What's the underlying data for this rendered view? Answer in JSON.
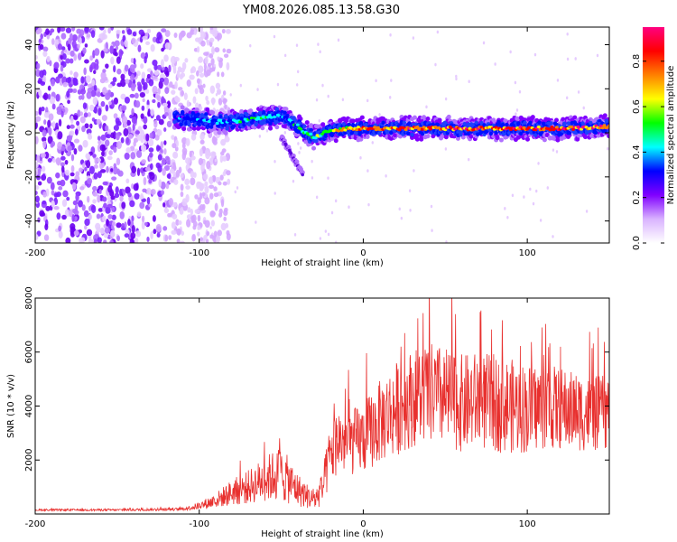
{
  "title": "YM08.2026.085.13.58.G30",
  "chart_data": [
    {
      "type": "heatmap",
      "title": "YM08.2026.085.13.58.G30",
      "xlabel": "Height of straight line (km)",
      "ylabel": "Frequency (Hz)",
      "xlim": [
        -200,
        150
      ],
      "ylim": [
        -50,
        48
      ],
      "xticks": [
        -200,
        -100,
        0,
        100
      ],
      "yticks": [
        -40,
        -20,
        0,
        20,
        40
      ],
      "colorbar": {
        "label": "Normalized spectral amplitude",
        "range": [
          0,
          0.95
        ],
        "ticks": [
          0,
          0.2,
          0.4,
          0.6,
          0.8
        ],
        "colors": [
          "#ffffff",
          "#d9b3ff",
          "#8000ff",
          "#0000ff",
          "#00ffff",
          "#00ff00",
          "#ffff00",
          "#ff8000",
          "#ff0000",
          "#ff0080"
        ]
      },
      "ridge": {
        "name": "Doppler trace",
        "x": [
          -115,
          -100,
          -90,
          -80,
          -70,
          -60,
          -50,
          -45,
          -40,
          -35,
          -30,
          -20,
          -10,
          0,
          25,
          50,
          75,
          100,
          125,
          150
        ],
        "y": [
          7,
          6,
          5,
          5,
          6,
          7,
          8,
          6,
          3,
          0,
          -2,
          1,
          2,
          2,
          2,
          2,
          2,
          2,
          2,
          3
        ],
        "peak_amplitude": [
          0.35,
          0.4,
          0.42,
          0.45,
          0.5,
          0.5,
          0.45,
          0.45,
          0.5,
          0.55,
          0.6,
          0.7,
          0.75,
          0.85,
          0.9,
          0.9,
          0.88,
          0.9,
          0.9,
          0.88
        ]
      },
      "branch": {
        "name": "secondary trace",
        "x": [
          -50,
          -45,
          -40,
          -37
        ],
        "y": [
          -2,
          -8,
          -15,
          -19
        ]
      },
      "noise_region": {
        "x_from": -200,
        "x_to": -100,
        "amplitude": 0.2
      }
    },
    {
      "type": "line",
      "xlabel": "Height of straight line (km)",
      "ylabel": "SNR (10 * v/v)",
      "xlim": [
        -200,
        150
      ],
      "ylim": [
        0,
        8000
      ],
      "xticks": [
        -200,
        -100,
        0,
        100
      ],
      "yticks": [
        2000,
        4000,
        6000,
        8000
      ],
      "series": [
        {
          "name": "SNR",
          "color": "#e8302e",
          "x": [
            -200,
            -150,
            -110,
            -100,
            -90,
            -80,
            -70,
            -60,
            -50,
            -40,
            -30,
            -25,
            -20,
            -15,
            -10,
            0,
            10,
            20,
            30,
            40,
            50,
            60,
            70,
            80,
            90,
            100,
            110,
            120,
            130,
            140,
            150
          ],
          "y": [
            150,
            150,
            180,
            300,
            500,
            800,
            1000,
            1300,
            1500,
            900,
            500,
            900,
            2200,
            2800,
            2600,
            2800,
            3400,
            3900,
            4300,
            4500,
            4300,
            4100,
            4200,
            4100,
            4000,
            3900,
            4000,
            3900,
            3800,
            3700,
            3800
          ],
          "spread": [
            50,
            60,
            80,
            200,
            400,
            700,
            900,
            1200,
            1500,
            900,
            500,
            900,
            1700,
            1800,
            1700,
            1900,
            2200,
            2500,
            2600,
            2700,
            2700,
            2600,
            2600,
            2600,
            2500,
            2400,
            2300,
            2200,
            2100,
            2000,
            2000
          ]
        }
      ]
    }
  ]
}
